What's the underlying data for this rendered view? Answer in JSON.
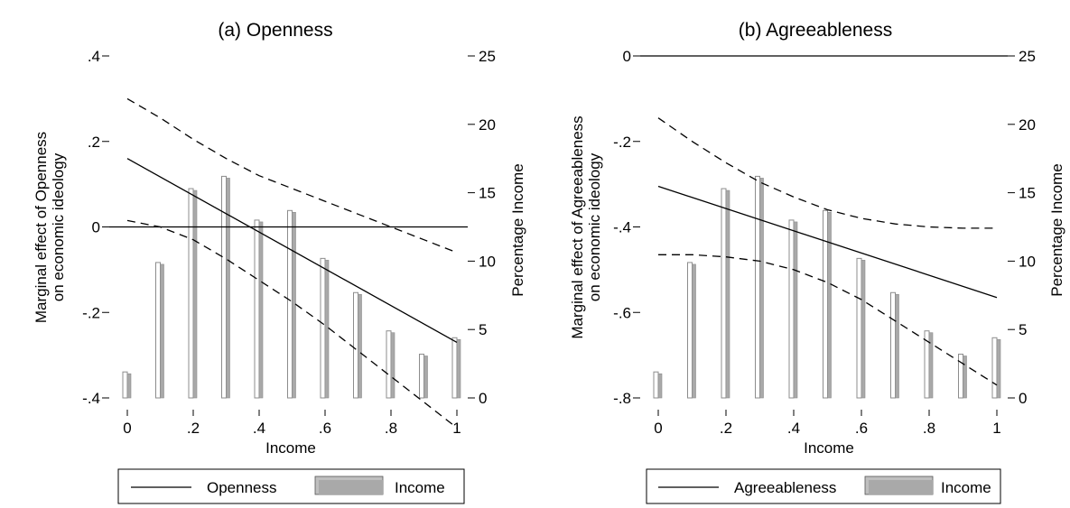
{
  "chart_data": [
    {
      "type": "line+bar",
      "title": "(a) Openness",
      "xlabel": "Income",
      "ylabel_left": [
        "Marginal effect of Openness",
        "on economic ideology"
      ],
      "ylabel_right": "Percentage Income",
      "x_ticks": [
        "0",
        ".2",
        ".4",
        ".6",
        ".8",
        "1"
      ],
      "y_left_ticks": [
        ".4",
        ".2",
        "0",
        "-.2",
        "-.4"
      ],
      "y_right_ticks": [
        "25",
        "20",
        "15",
        "10",
        "5",
        "0"
      ],
      "y_left_range": [
        -0.4,
        0.4
      ],
      "y_right_range": [
        0,
        25
      ],
      "marginal_effect": {
        "x": [
          0,
          1
        ],
        "y": [
          0.16,
          -0.27
        ]
      },
      "ci_upper": {
        "x": [
          0,
          0.1,
          0.2,
          0.3,
          0.4,
          0.5,
          0.6,
          0.7,
          0.8,
          0.9,
          1.0
        ],
        "y": [
          0.3,
          0.255,
          0.205,
          0.16,
          0.12,
          0.09,
          0.06,
          0.03,
          0.0,
          -0.03,
          -0.06
        ]
      },
      "ci_lower": {
        "x": [
          0,
          0.1,
          0.2,
          0.3,
          0.4,
          0.5,
          0.6,
          0.7,
          0.8,
          0.9,
          1.0
        ],
        "y": [
          0.015,
          0.0,
          -0.03,
          -0.075,
          -0.125,
          -0.175,
          -0.23,
          -0.29,
          -0.35,
          -0.41,
          -0.47
        ]
      },
      "zero_line": 0,
      "bars": {
        "x": [
          0,
          0.1,
          0.2,
          0.3,
          0.4,
          0.5,
          0.6,
          0.7,
          0.8,
          0.9,
          1.0
        ],
        "values": [
          1.9,
          9.9,
          15.3,
          16.2,
          13.0,
          13.7,
          10.2,
          7.7,
          4.9,
          3.2,
          4.4
        ]
      },
      "legend": [
        "Openness",
        "Income"
      ],
      "legend_position": "bottom"
    },
    {
      "type": "line+bar",
      "title": "(b) Agreeableness",
      "xlabel": "Income",
      "ylabel_left": [
        "Marginal effect of Agreeableness",
        "on economic ideology"
      ],
      "ylabel_right": "Percentage Income",
      "x_ticks": [
        "0",
        ".2",
        ".4",
        ".6",
        ".8",
        "1"
      ],
      "y_left_ticks": [
        "0",
        "-.2",
        "-.4",
        "-.6",
        "-.8"
      ],
      "y_right_ticks": [
        "25",
        "20",
        "15",
        "10",
        "5",
        "0"
      ],
      "y_left_range": [
        -0.8,
        0
      ],
      "y_right_range": [
        0,
        25
      ],
      "marginal_effect": {
        "x": [
          0,
          1
        ],
        "y": [
          -0.305,
          -0.565
        ]
      },
      "ci_upper": {
        "x": [
          0,
          0.1,
          0.2,
          0.3,
          0.4,
          0.5,
          0.6,
          0.7,
          0.8,
          0.9,
          1.0
        ],
        "y": [
          -0.145,
          -0.2,
          -0.25,
          -0.295,
          -0.33,
          -0.36,
          -0.38,
          -0.393,
          -0.4,
          -0.403,
          -0.403
        ]
      },
      "ci_lower": {
        "x": [
          0,
          0.1,
          0.2,
          0.3,
          0.4,
          0.5,
          0.6,
          0.7,
          0.8,
          0.9,
          1.0
        ],
        "y": [
          -0.465,
          -0.465,
          -0.47,
          -0.48,
          -0.5,
          -0.53,
          -0.57,
          -0.62,
          -0.67,
          -0.72,
          -0.77
        ]
      },
      "zero_line": 0,
      "bars": {
        "x": [
          0,
          0.1,
          0.2,
          0.3,
          0.4,
          0.5,
          0.6,
          0.7,
          0.8,
          0.9,
          1.0
        ],
        "values": [
          1.9,
          9.9,
          15.3,
          16.2,
          13.0,
          13.7,
          10.2,
          7.7,
          4.9,
          3.2,
          4.4
        ]
      },
      "legend": [
        "Agreeableness",
        "Income"
      ],
      "legend_position": "bottom"
    }
  ]
}
